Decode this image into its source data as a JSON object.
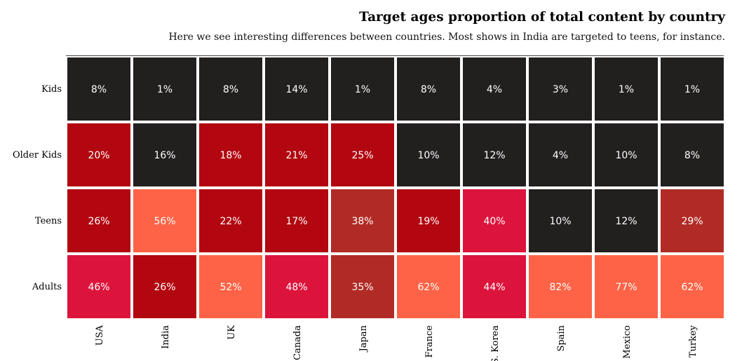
{
  "chart_data": {
    "type": "heatmap",
    "title": "Target ages proportion of total content by country",
    "subtitle": "Here we see interesting differences between countries. Most shows in India are targeted to teens, for instance.",
    "columns": [
      "USA",
      "India",
      "UK",
      "Canada",
      "Japan",
      "France",
      "S. Korea",
      "Spain",
      "Mexico",
      "Turkey"
    ],
    "rows": [
      "Kids",
      "Older Kids",
      "Teens",
      "Adults"
    ],
    "values": [
      [
        8,
        1,
        8,
        14,
        1,
        8,
        4,
        3,
        1,
        1
      ],
      [
        20,
        16,
        18,
        21,
        25,
        10,
        12,
        4,
        10,
        8
      ],
      [
        26,
        56,
        22,
        17,
        38,
        19,
        40,
        10,
        12,
        29
      ],
      [
        46,
        26,
        52,
        48,
        35,
        62,
        44,
        82,
        77,
        62
      ]
    ],
    "labels": [
      [
        "8%",
        "1%",
        "8%",
        "14%",
        "1%",
        "8%",
        "4%",
        "3%",
        "1%",
        "1%"
      ],
      [
        "20%",
        "16%",
        "18%",
        "21%",
        "25%",
        "10%",
        "12%",
        "4%",
        "10%",
        "8%"
      ],
      [
        "26%",
        "56%",
        "22%",
        "17%",
        "38%",
        "19%",
        "40%",
        "10%",
        "12%",
        "29%"
      ],
      [
        "46%",
        "26%",
        "52%",
        "48%",
        "35%",
        "62%",
        "44%",
        "82%",
        "77%",
        "62%"
      ]
    ],
    "colors": {
      "darkest": "#221f1f",
      "dark_red": "#b20710",
      "brick": "#b12b26",
      "crimson": "#dc143c",
      "tomato": "#ff6347"
    },
    "cell_colors": [
      [
        "#221f1f",
        "#221f1f",
        "#221f1f",
        "#221f1f",
        "#221f1f",
        "#221f1f",
        "#221f1f",
        "#221f1f",
        "#221f1f",
        "#221f1f"
      ],
      [
        "#b20710",
        "#221f1f",
        "#b20710",
        "#b20710",
        "#b20710",
        "#221f1f",
        "#221f1f",
        "#221f1f",
        "#221f1f",
        "#221f1f"
      ],
      [
        "#b20710",
        "#ff6347",
        "#b20710",
        "#b20710",
        "#b12b26",
        "#b20710",
        "#dc143c",
        "#221f1f",
        "#221f1f",
        "#b12b26"
      ],
      [
        "#dc143c",
        "#b20710",
        "#ff6347",
        "#dc143c",
        "#b12b26",
        "#ff6347",
        "#dc143c",
        "#ff6347",
        "#ff6347",
        "#ff6347"
      ]
    ],
    "xlabel": "",
    "ylabel": "",
    "legend": "none",
    "grid": false
  }
}
